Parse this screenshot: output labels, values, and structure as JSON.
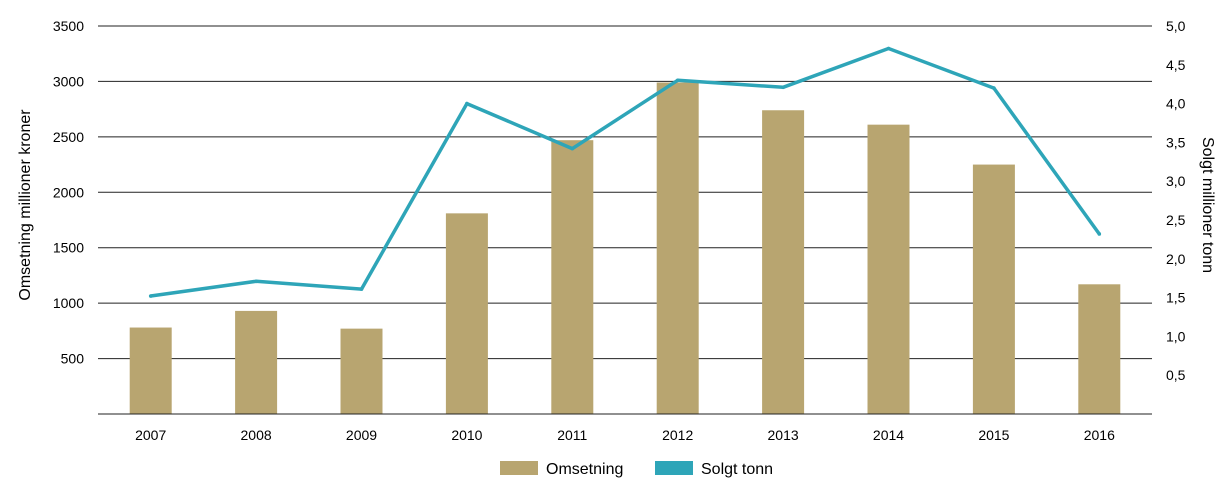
{
  "chart_data": {
    "type": "bar",
    "categories": [
      "2007",
      "2008",
      "2009",
      "2010",
      "2011",
      "2012",
      "2013",
      "2014",
      "2015",
      "2016"
    ],
    "series": [
      {
        "name": "Omsetning",
        "type": "bar",
        "axis": "left",
        "color": "#b8a570",
        "values": [
          780,
          930,
          770,
          1810,
          2470,
          2990,
          2740,
          2610,
          2250,
          1170
        ]
      },
      {
        "name": "Solgt tonn",
        "type": "line",
        "axis": "right",
        "color": "#2ea5b8",
        "values": [
          1.52,
          1.71,
          1.61,
          4.0,
          3.42,
          4.3,
          4.21,
          4.71,
          4.2,
          2.32
        ]
      }
    ],
    "ylabel": "Omsetning millioner kroner",
    "y2label": "Solgt millioner tonn",
    "ylim": [
      0,
      3500
    ],
    "y2lim": [
      0,
      5.0
    ],
    "yticks": [
      "500",
      "1000",
      "1500",
      "2000",
      "2500",
      "3000",
      "3500"
    ],
    "y2ticks": [
      "0,5",
      "1,0",
      "1,5",
      "2,0",
      "2,5",
      "3,0",
      "3,5",
      "4,0",
      "4,5",
      "5,0"
    ],
    "grid": true,
    "legend_position": "bottom"
  }
}
